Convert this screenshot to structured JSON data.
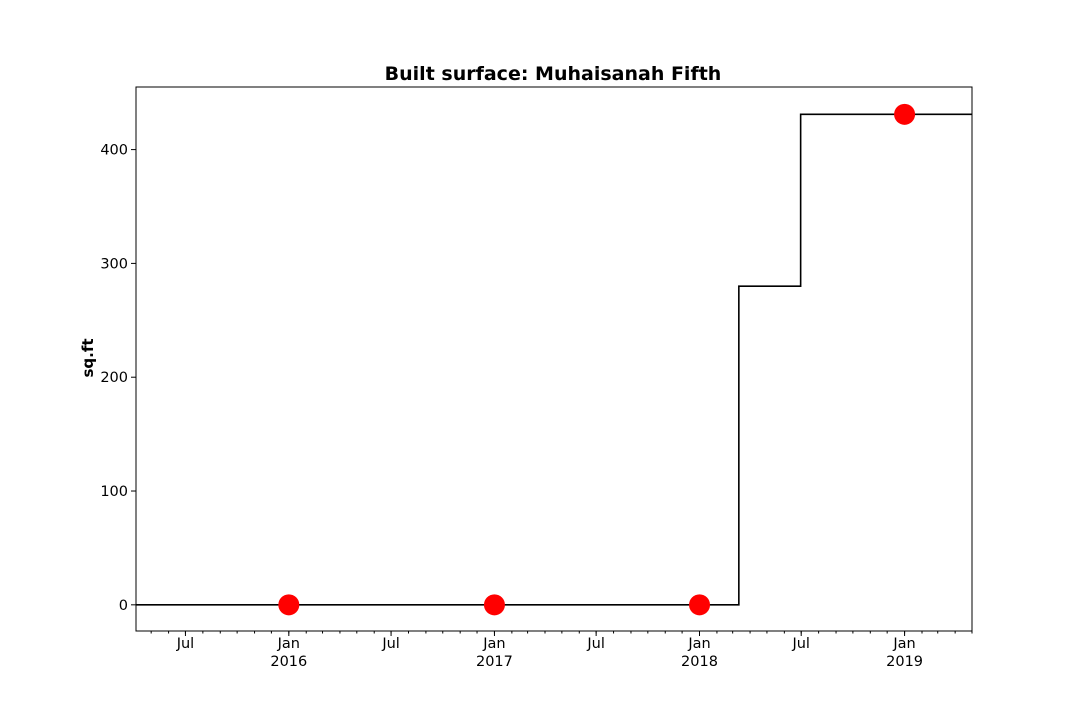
{
  "chart_data": {
    "type": "line",
    "title": "Built surface: Muhaisanah Fifth",
    "xlabel": "",
    "ylabel": "sq.ft",
    "xlim": [
      "2015-04-04",
      "2019-05-01"
    ],
    "ylim": [
      -23,
      455
    ],
    "y_ticks": [
      0,
      100,
      200,
      300,
      400
    ],
    "x_major_ticks": [
      {
        "date": "2015-07-01",
        "label": "Jul"
      },
      {
        "date": "2016-01-01",
        "label": "Jan\n2016"
      },
      {
        "date": "2016-07-01",
        "label": "Jul"
      },
      {
        "date": "2017-01-01",
        "label": "Jan\n2017"
      },
      {
        "date": "2017-07-01",
        "label": "Jul"
      },
      {
        "date": "2018-01-01",
        "label": "Jan\n2018"
      },
      {
        "date": "2018-07-01",
        "label": "Jul"
      },
      {
        "date": "2019-01-01",
        "label": "Jan\n2019"
      }
    ],
    "x_minor_tick_interval": "month",
    "grid": false,
    "series": [
      {
        "style": "step",
        "color": "#000000",
        "x": [
          "2015-04-04",
          "2018-03-12",
          "2018-06-30",
          "2019-05-01"
        ],
        "y": [
          0,
          280,
          431,
          431
        ]
      },
      {
        "style": "markers",
        "color": "#ff0000",
        "x": [
          "2016-01-01",
          "2017-01-01",
          "2018-01-01",
          "2019-01-01"
        ],
        "y": [
          0,
          0,
          0,
          431
        ]
      }
    ]
  }
}
